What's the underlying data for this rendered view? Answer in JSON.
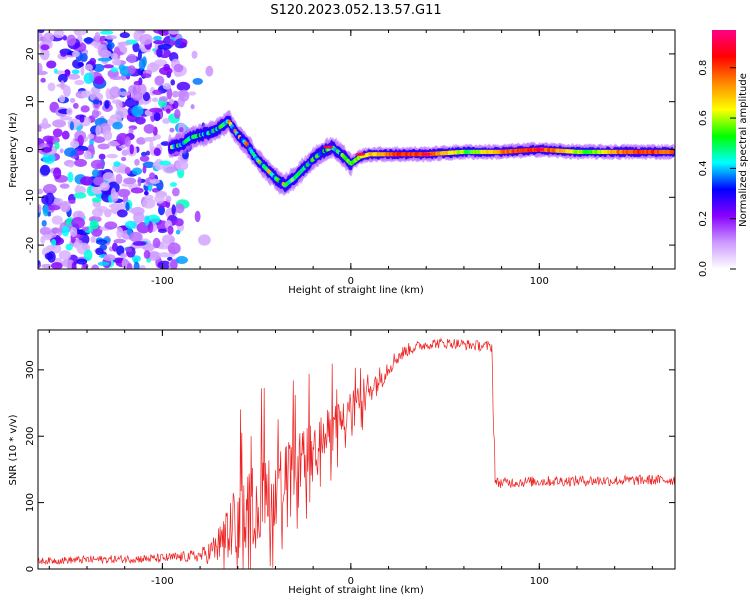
{
  "chart_data": [
    {
      "type": "heatmap",
      "title": "S120.2023.052.13.57.G11",
      "xlabel": "Height of straight line (km)",
      "ylabel": "Frequency (Hz)",
      "xlim": [
        -166,
        172
      ],
      "ylim": [
        -25,
        25
      ],
      "x_ticks": [
        -100,
        0,
        100
      ],
      "y_ticks": [
        -20,
        -10,
        0,
        10,
        20
      ],
      "grid": false,
      "colorbar": {
        "label": "Normalized spectral amplitude",
        "range": [
          0,
          0.95
        ],
        "ticks": [
          0.0,
          0.2,
          0.4,
          0.6,
          0.8
        ],
        "colormap": [
          "#ffffff",
          "#cc99ff",
          "#8800ff",
          "#0000ff",
          "#00ffff",
          "#00ff00",
          "#ffff00",
          "#ff8800",
          "#ff0000",
          "#ff0088"
        ]
      },
      "ridge": {
        "x": [
          -95,
          -90,
          -85,
          -80,
          -75,
          -70,
          -65,
          -60,
          -55,
          -50,
          -45,
          -40,
          -35,
          -30,
          -25,
          -20,
          -15,
          -10,
          -5,
          0,
          5,
          10,
          20,
          40,
          60,
          80,
          100,
          120,
          140,
          160,
          170
        ],
        "y": [
          0.5,
          1,
          2.5,
          3,
          3.5,
          4.5,
          6,
          3,
          1,
          -2,
          -4,
          -6,
          -7.5,
          -6,
          -4,
          -2,
          -0.5,
          0.5,
          -1,
          -3,
          -1.5,
          -1,
          -1,
          -1,
          -0.5,
          -0.5,
          0,
          -0.5,
          -0.5,
          -0.5,
          -0.5
        ]
      }
    },
    {
      "type": "line",
      "xlabel": "Height of straight line (km)",
      "ylabel": "SNR (10 * v/v)",
      "xlim": [
        -166,
        172
      ],
      "ylim": [
        0,
        360
      ],
      "x_ticks": [
        -100,
        0,
        100
      ],
      "y_ticks": [
        0,
        100,
        200,
        300
      ],
      "grid": false,
      "color": "#ff0000",
      "x": [
        -166,
        -140,
        -120,
        -100,
        -90,
        -80,
        -75,
        -70,
        -65,
        -60,
        -55,
        -50,
        -45,
        -40,
        -35,
        -30,
        -25,
        -20,
        -15,
        -10,
        -5,
        0,
        5,
        10,
        15,
        20,
        25,
        30,
        35,
        40,
        45,
        50,
        55,
        60,
        65,
        70,
        75,
        76,
        80,
        100,
        120,
        140,
        160,
        172
      ],
      "y": [
        12,
        14,
        15,
        16,
        18,
        20,
        25,
        35,
        55,
        75,
        90,
        100,
        110,
        120,
        140,
        155,
        165,
        180,
        195,
        210,
        225,
        240,
        260,
        275,
        285,
        305,
        320,
        330,
        335,
        338,
        340,
        340,
        340,
        338,
        337,
        336,
        335,
        130,
        130,
        132,
        133,
        133,
        134,
        134
      ],
      "noise": [
        5,
        6,
        6,
        7,
        8,
        10,
        18,
        30,
        45,
        55,
        60,
        60,
        55,
        55,
        50,
        45,
        45,
        40,
        40,
        35,
        30,
        25,
        25,
        25,
        20,
        15,
        12,
        10,
        8,
        8,
        8,
        8,
        8,
        8,
        8,
        8,
        8,
        8,
        8,
        8,
        8,
        8,
        8,
        8
      ]
    }
  ]
}
